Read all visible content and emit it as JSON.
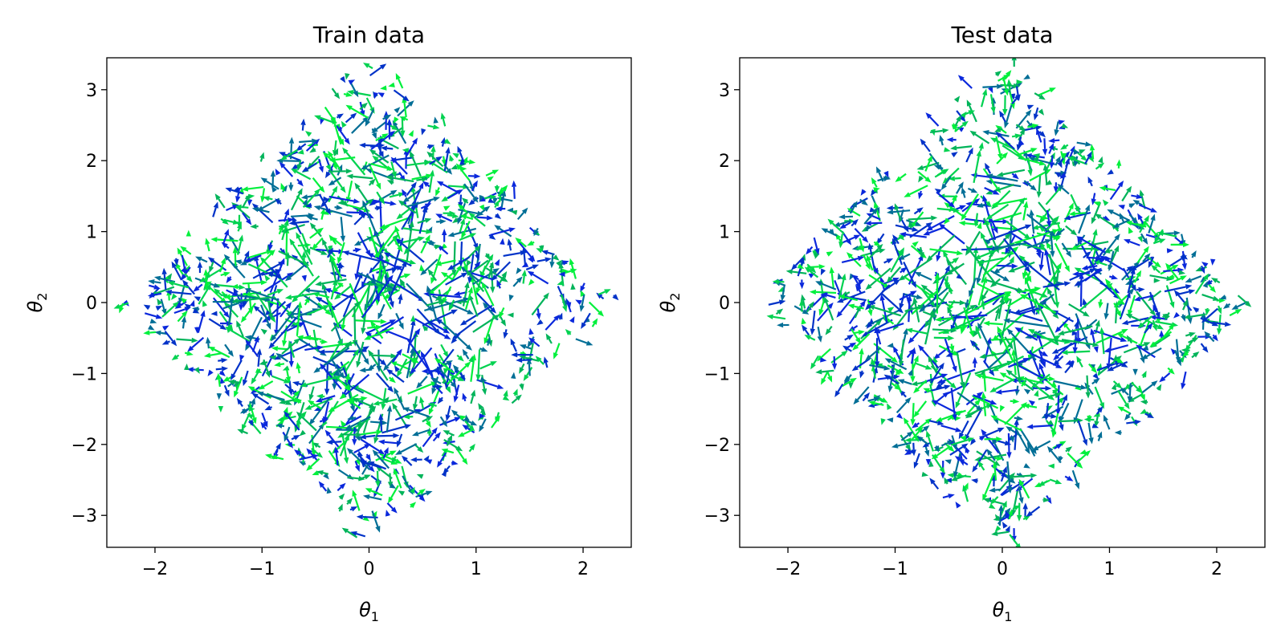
{
  "chart_data": [
    {
      "type": "quiver",
      "title": "Train data",
      "xlabel": "θ₁",
      "ylabel": "θ₂",
      "xlim": [
        -2.45,
        2.45
      ],
      "ylim": [
        -3.45,
        3.45
      ],
      "xticks": [
        -2,
        -1,
        0,
        1,
        2
      ],
      "yticks": [
        -3,
        -2,
        -1,
        0,
        1,
        2,
        3
      ],
      "xtick_labels": [
        "−2",
        "−1",
        "0",
        "1",
        "2"
      ],
      "ytick_labels": [
        "−3",
        "−2",
        "−1",
        "0",
        "1",
        "2",
        "3"
      ],
      "grid": false,
      "legend": "none",
      "colors": [
        "#00f03c",
        "#00b45a",
        "#006e96",
        "#0a28dc",
        "#0032c8",
        "#00d250"
      ],
      "region": "diamond-shaped cloud, |θ₁|/2.25 + |θ₂|/3.4 ≲ 1",
      "vector_count_estimate": 1100,
      "seed": 7
    },
    {
      "type": "quiver",
      "title": "Test data",
      "xlabel": "θ₁",
      "ylabel": "θ₂",
      "xlim": [
        -2.45,
        2.45
      ],
      "ylim": [
        -3.45,
        3.45
      ],
      "xticks": [
        -2,
        -1,
        0,
        1,
        2
      ],
      "yticks": [
        -3,
        -2,
        -1,
        0,
        1,
        2,
        3
      ],
      "xtick_labels": [
        "−2",
        "−1",
        "0",
        "1",
        "2"
      ],
      "ytick_labels": [
        "−3",
        "−2",
        "−1",
        "0",
        "1",
        "2",
        "3"
      ],
      "grid": false,
      "legend": "none",
      "colors": [
        "#00f03c",
        "#00b45a",
        "#006e96",
        "#0a28dc",
        "#0032c8",
        "#00d250"
      ],
      "region": "diamond-shaped cloud, |θ₁|/2.25 + |θ₂|/3.4 ≲ 1",
      "vector_count_estimate": 1100,
      "seed": 19
    }
  ]
}
